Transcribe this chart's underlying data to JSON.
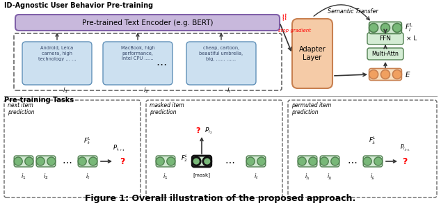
{
  "title": "Figure 1: Overall illustration of the proposed approach.",
  "top_section_title": "ID-Agnostic User Behavior Pre-training",
  "bottom_section_title": "Pre-training Tasks",
  "semantic_transfer_label": "Semantic Transfer",
  "stop_gradient_label": "stop gradient",
  "adapter_layer_label": "Adapter\nLayer",
  "ffn_label": "FFN",
  "multi_attn_label": "Multi-Attn",
  "xL_label": "× L",
  "E_label": "$E$",
  "Fi_L_label": "$F_i^L$",
  "pretrained_encoder_label": "Pre-trained Text Encoder (e.g. BERT)",
  "item_texts": [
    "Android, Leica\ncamera, high\ntechnology … …",
    "MacBook, high\nperformance,\nIntel CPU ……",
    "cheap, cartoon,\nbeautiful umbrella,\nbig, …… ……"
  ],
  "item_labels": [
    "$i_1$",
    "$i_2$",
    "$i_t$"
  ],
  "task1_title": "next item\nprediction",
  "task1_Ft": "$F_t^L$",
  "task1_P": "$P_{i_{t+1}}$",
  "task2_title": "masked item\nprediction",
  "task2_mask_label": "[mask]",
  "task2_F2": "$F_2^L$",
  "task2_P": "$P_{i_2}$",
  "task3_title": "permuted item\nprediction",
  "task3_Ft": "$F_{j_t}^L$",
  "task3_P": "$P_{i_{j_{t+1}}}$",
  "colors": {
    "background": "#ffffff",
    "bert_box": "#c8b8dc",
    "item_box": "#cce0f0",
    "adapter_box": "#f5cba7",
    "transformer_box_light": "#d4ecd4",
    "transformer_box": "#b8d8b8",
    "orange_circle": "#f0a060",
    "green_circle": "#78b878",
    "green_circle_light": "#d0e8d0",
    "dashed_border": "#666666",
    "arrow": "#333333",
    "stop_gradient": "#ff0000",
    "question_mark": "#ff0000",
    "bert_edge": "#8060a8",
    "item_edge": "#6090b8",
    "adapter_edge": "#c88050",
    "transformer_edge": "#508050"
  }
}
